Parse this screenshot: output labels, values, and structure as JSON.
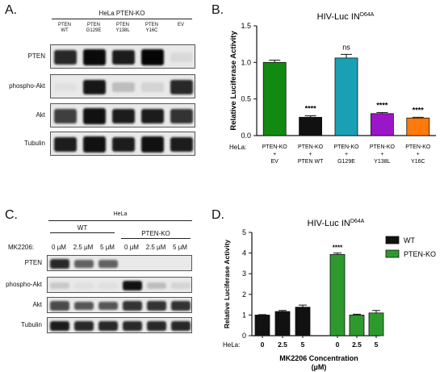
{
  "panel_a": {
    "letter": "A.",
    "group_label": "HeLa PTEN-KO",
    "lanes": [
      {
        "line1": "PTEN",
        "line2": "WT"
      },
      {
        "line1": "PTEN",
        "line2": "G129E"
      },
      {
        "line1": "PTEN",
        "line2": "Y138L"
      },
      {
        "line1": "PTEN",
        "line2": "Y16C"
      },
      {
        "line1": "EV",
        "line2": ""
      }
    ],
    "blot_labels": [
      "PTEN",
      "phospho-Akt",
      "Akt",
      "Tubulin"
    ],
    "band_intensity": [
      [
        0.85,
        0.98,
        0.9,
        1.0,
        0.08
      ],
      [
        0.05,
        0.92,
        0.2,
        0.1,
        0.85
      ],
      [
        0.75,
        0.95,
        0.9,
        0.9,
        0.8
      ],
      [
        0.9,
        0.95,
        0.9,
        0.95,
        0.9
      ]
    ]
  },
  "panel_c": {
    "letter": "C.",
    "top_label": "HeLa",
    "group_wt": "WT",
    "group_ko": "PTEN-KO",
    "treatment_label": "MK2206:",
    "lanes": [
      "0 µM",
      "2.5 µM",
      "5 µM",
      "0 µM",
      "2.5 µM",
      "5 µM"
    ],
    "blot_labels": [
      "PTEN",
      "phospho-Akt",
      "Akt",
      "Tubulin"
    ],
    "band_intensity": [
      [
        0.85,
        0.6,
        0.6,
        0.0,
        0.0,
        0.0
      ],
      [
        0.15,
        0.05,
        0.05,
        0.95,
        0.2,
        0.1
      ],
      [
        0.7,
        0.65,
        0.65,
        0.8,
        0.8,
        0.8
      ],
      [
        0.9,
        0.85,
        0.85,
        0.85,
        0.85,
        0.85
      ]
    ]
  },
  "chart_data": [
    {
      "panel": "B.",
      "type": "bar",
      "title": "HIV-Luc IN",
      "title_sup": "D64A",
      "ylabel": "Relative Luciferase Activity",
      "ylim": [
        0,
        1.5
      ],
      "yticks": [
        "0.0",
        "0.5",
        "1.0",
        "1.5"
      ],
      "row_label": "HeLa:",
      "categories": [
        [
          "PTEN-KO",
          "+",
          "EV"
        ],
        [
          "PTEN-KO",
          "+",
          "PTEN WT"
        ],
        [
          "PTEN-KO",
          "+",
          "G129E"
        ],
        [
          "PTEN-KO",
          "+",
          "Y138L"
        ],
        [
          "PTEN-KO",
          "+",
          "Y16C"
        ]
      ],
      "values": [
        1.0,
        0.25,
        1.06,
        0.3,
        0.24
      ],
      "errors": [
        0.03,
        0.02,
        0.05,
        0.015,
        0.01
      ],
      "colors": [
        "#128a12",
        "#111111",
        "#1aa0b5",
        "#9b16c9",
        "#ff7a0a"
      ],
      "significance": [
        "",
        "****",
        "ns",
        "****",
        "****"
      ]
    },
    {
      "panel": "D.",
      "type": "bar",
      "title": "HIV-Luc IN",
      "title_sup": "D64A",
      "ylabel": "Relative Luciferase Activity",
      "xlabel_line1": "MK2206 Concentration",
      "xlabel_line2": "(µM)",
      "ylim": [
        0,
        5
      ],
      "yticks": [
        "0",
        "1",
        "2",
        "3",
        "4",
        "5"
      ],
      "row_label": "HeLa:",
      "categories": [
        "0",
        "2.5",
        "5",
        "0",
        "2.5",
        "5"
      ],
      "values": [
        1.0,
        1.17,
        1.38,
        3.93,
        1.0,
        1.1
      ],
      "errors": [
        0.02,
        0.05,
        0.1,
        0.07,
        0.04,
        0.12
      ],
      "series_of_bar": [
        0,
        0,
        0,
        1,
        1,
        1
      ],
      "series": [
        {
          "name": "WT",
          "color": "#111111"
        },
        {
          "name": "PTEN-KO",
          "color": "#2e9a2e"
        }
      ],
      "significance": [
        "",
        "",
        "",
        "****",
        "",
        ""
      ]
    }
  ]
}
